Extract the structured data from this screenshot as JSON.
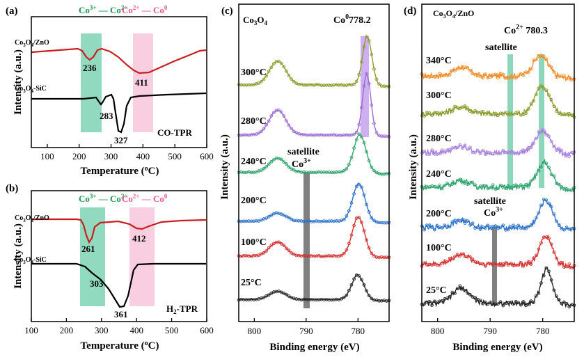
{
  "colors": {
    "axis": "#000000",
    "green_band": "#7fd3b4",
    "pink_band": "#f7c6da",
    "purple_band": "#c9a6ee",
    "gray_bar": "#808080",
    "co3_co2": "#1a9850",
    "co2_co0": "#e8588a",
    "cozno": "#c81e1e",
    "cosic": "#000000"
  },
  "panels": [
    {
      "id": "a",
      "label": "(a)",
      "header": {
        "left": "Co3+ — Co2+",
        "right": "Co2+ — Co0"
      },
      "curve_labels": [
        "Co3O4/ZnO",
        "Co3O4-SiC"
      ],
      "tag": "CO-TPR",
      "ylabel": "Intensity (a.u.)",
      "xlabel": "Temperature (°C)",
      "xticks": [
        "100",
        "200",
        "300",
        "400",
        "500",
        "600"
      ],
      "xrange": [
        50,
        600
      ],
      "bands": [
        {
          "range": [
            210,
            265
          ],
          "color": "green"
        },
        {
          "range": [
            370,
            430
          ],
          "color": "pink"
        }
      ],
      "peaks": {
        "cozno": [
          "236",
          "411"
        ],
        "cosic": [
          "283",
          "327"
        ]
      }
    },
    {
      "id": "b",
      "label": "(b)",
      "header": {
        "left": "Co3+ — Co2+",
        "right": "Co2+ — Co0"
      },
      "curve_labels": [
        "Co3O4/ZnO",
        "Co3O4-SiC"
      ],
      "tag": "H2-TPR",
      "ylabel": "Intensity (a.u.)",
      "xlabel": "Temperature (°C)",
      "xticks": [
        "100",
        "200",
        "300",
        "400",
        "500",
        "600"
      ],
      "xrange": [
        100,
        600
      ],
      "bands": [
        {
          "range": [
            230,
            305
          ],
          "color": "green"
        },
        {
          "range": [
            380,
            445
          ],
          "color": "pink"
        }
      ],
      "peaks": {
        "cozno": [
          "261",
          "412"
        ],
        "cosic": [
          "303",
          "361"
        ]
      }
    },
    {
      "id": "c",
      "label": "(c)",
      "title": "Co3O4",
      "annotation": "Co0 778.2",
      "satellite": "satellite",
      "satellite_ion": "Co3+",
      "ylabel": "Intensity (a.u.)",
      "xlabel": "Binding energy (eV)",
      "xticks": [
        "800",
        "790",
        "780"
      ],
      "temps": [
        "300°C",
        "280°C",
        "240°C",
        "200°C",
        "100°C",
        "25°C"
      ]
    },
    {
      "id": "d",
      "label": "(d)",
      "title": "Co3O4/ZnO",
      "annotation": "Co2+ 780.3",
      "satellite": "satellite",
      "satellite_bottom": "satellite",
      "satellite_ion": "Co3+",
      "ylabel": "Intensity (a.u.)",
      "xlabel": "Binding energy (eV)",
      "xticks": [
        "800",
        "790",
        "780"
      ],
      "temps": [
        "340°C",
        "300°C",
        "280°C",
        "240°C",
        "200°C",
        "100°C",
        "25°C"
      ]
    }
  ],
  "chart_data": [
    {
      "type": "line",
      "panel": "a",
      "title": "CO-TPR",
      "xlabel": "Temperature (°C)",
      "ylabel": "Intensity (a.u.)",
      "xlim": [
        50,
        600
      ],
      "series": [
        {
          "name": "Co3O4/ZnO",
          "peaks": [
            236,
            411
          ]
        },
        {
          "name": "Co3O4-SiC",
          "peaks": [
            283,
            327
          ]
        }
      ]
    },
    {
      "type": "line",
      "panel": "b",
      "title": "H2-TPR",
      "xlabel": "Temperature (°C)",
      "ylabel": "Intensity (a.u.)",
      "xlim": [
        100,
        600
      ],
      "series": [
        {
          "name": "Co3O4/ZnO",
          "peaks": [
            261,
            412
          ]
        },
        {
          "name": "Co3O4-SiC",
          "peaks": [
            303,
            361
          ]
        }
      ]
    },
    {
      "type": "line",
      "panel": "c",
      "title": "Co3O4",
      "xlabel": "Binding energy (eV)",
      "ylabel": "Intensity (a.u.)",
      "xlim": [
        803,
        774
      ],
      "series_names": [
        "300°C",
        "280°C",
        "240°C",
        "200°C",
        "100°C",
        "25°C"
      ],
      "markers": {
        "Co0": 778.2,
        "satellite": 790
      }
    },
    {
      "type": "line",
      "panel": "d",
      "title": "Co3O4/ZnO",
      "xlabel": "Binding energy (eV)",
      "ylabel": "Intensity (a.u.)",
      "xlim": [
        803,
        774
      ],
      "series_names": [
        "340°C",
        "300°C",
        "280°C",
        "240°C",
        "200°C",
        "100°C",
        "25°C"
      ],
      "markers": {
        "Co2+": 780.3,
        "satellite": 786.3,
        "satellite_Co3+": 789.5
      }
    }
  ]
}
